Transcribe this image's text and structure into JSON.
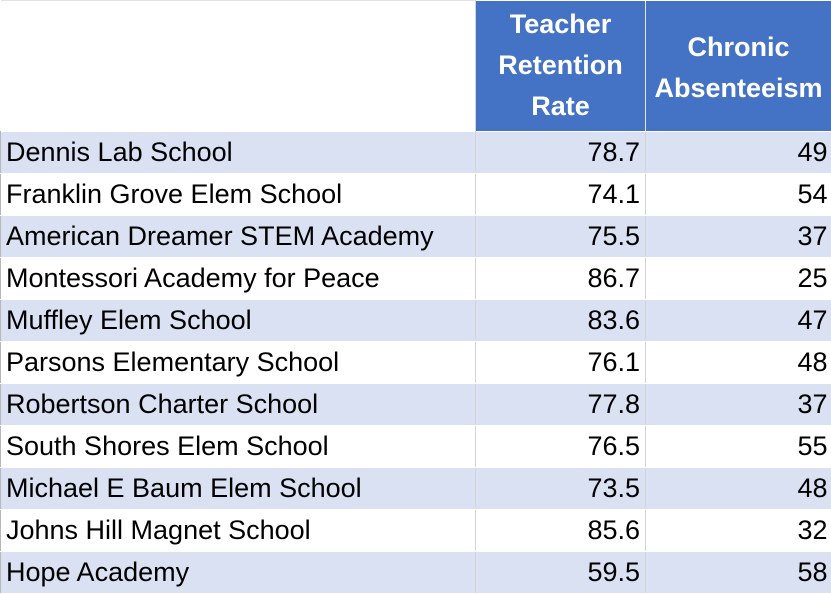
{
  "table": {
    "headers": {
      "name": "",
      "retention": "Teacher\nRetention\nRate",
      "absenteeism": "Chronic\nAbsenteeism"
    },
    "rows": [
      {
        "school": "Dennis Lab School",
        "retention": "78.7",
        "absenteeism": "49"
      },
      {
        "school": "Franklin Grove Elem School",
        "retention": "74.1",
        "absenteeism": "54"
      },
      {
        "school": "American Dreamer STEM Academy",
        "retention": "75.5",
        "absenteeism": "37"
      },
      {
        "school": "Montessori Academy for Peace",
        "retention": "86.7",
        "absenteeism": "25"
      },
      {
        "school": "Muffley Elem School",
        "retention": "83.6",
        "absenteeism": "47"
      },
      {
        "school": "Parsons Elementary School",
        "retention": "76.1",
        "absenteeism": "48"
      },
      {
        "school": "Robertson Charter School",
        "retention": "77.8",
        "absenteeism": "37"
      },
      {
        "school": "South Shores Elem School",
        "retention": "76.5",
        "absenteeism": "55"
      },
      {
        "school": "Michael E Baum Elem School",
        "retention": "73.5",
        "absenteeism": "48"
      },
      {
        "school": "Johns Hill Magnet School",
        "retention": "85.6",
        "absenteeism": "32"
      },
      {
        "school": "Hope Academy",
        "retention": "59.5",
        "absenteeism": "58"
      }
    ]
  },
  "colors": {
    "header_fill": "#4472c4",
    "header_text": "#ffffff",
    "band_fill": "#d9e1f2",
    "plain_fill": "#ffffff"
  }
}
